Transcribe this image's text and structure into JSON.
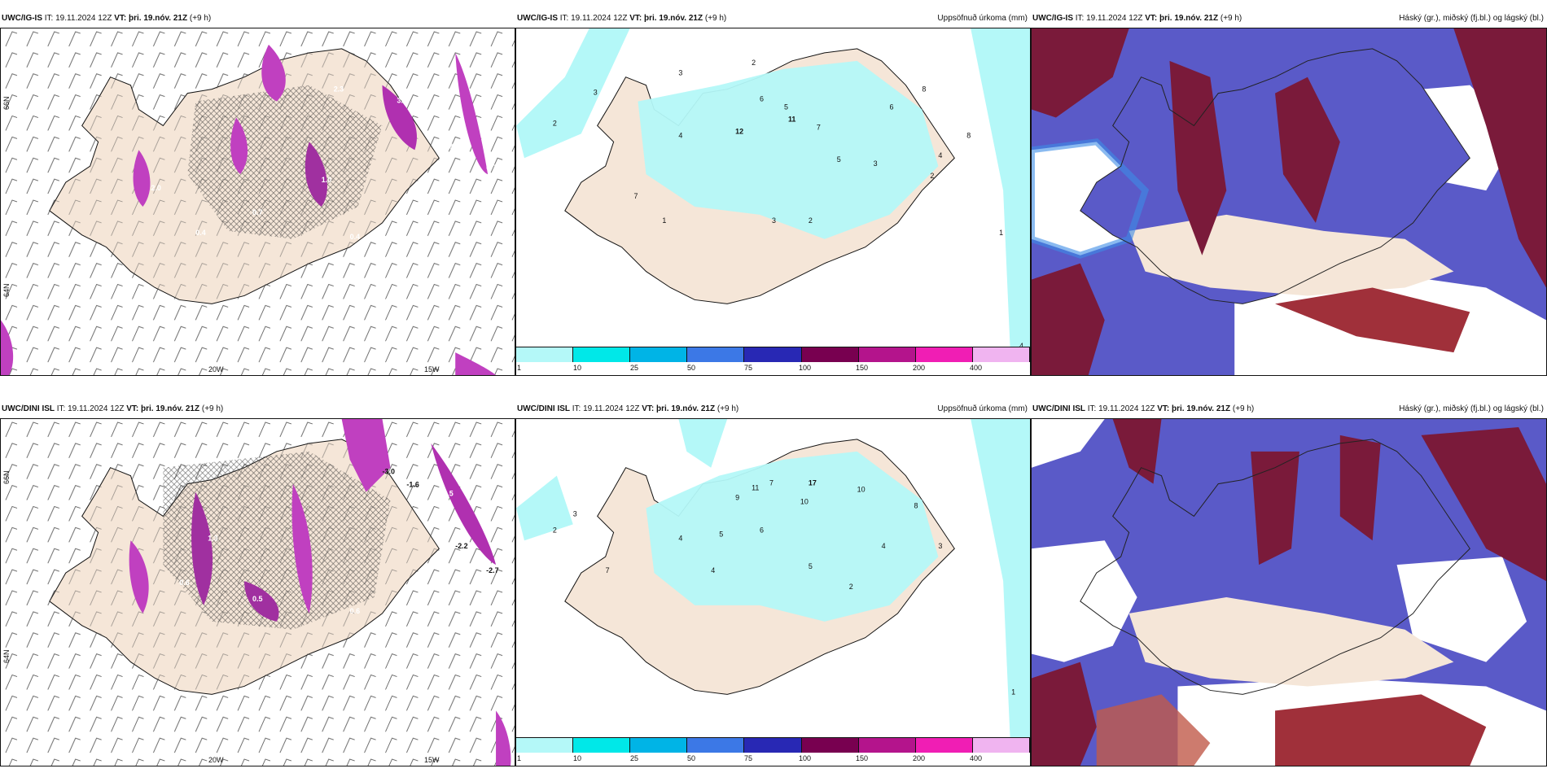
{
  "panels": [
    {
      "model_label": "UWC/IG-IS",
      "it_label": "IT:",
      "it_value": "19.11.2024 12Z",
      "vt_label": "VT:",
      "vt_value": "þri. 19.nóv. 21Z",
      "lead": "(+9 h)",
      "right_label": ""
    },
    {
      "model_label": "UWC/IG-IS",
      "it_label": "IT:",
      "it_value": "19.11.2024 12Z",
      "vt_label": "VT:",
      "vt_value": "þri. 19.nóv. 21Z",
      "lead": "(+9 h)",
      "right_label": "Uppsöfnuð úrkoma (mm)"
    },
    {
      "model_label": "UWC/IG-IS",
      "it_label": "IT:",
      "it_value": "19.11.2024 12Z",
      "vt_label": "VT:",
      "vt_value": "þri. 19.nóv. 21Z",
      "lead": "(+9 h)",
      "right_label": "Háský (gr.), miðský (fj.bl.) og lágský (bl.)"
    },
    {
      "model_label": "UWC/DINI ISL",
      "it_label": "IT:",
      "it_value": "19.11.2024 12Z",
      "vt_label": "VT:",
      "vt_value": "þri. 19.nóv. 21Z",
      "lead": "(+9 h)",
      "right_label": ""
    },
    {
      "model_label": "UWC/DINI ISL",
      "it_label": "IT:",
      "it_value": "19.11.2024 12Z",
      "vt_label": "VT:",
      "vt_value": "þri. 19.nóv. 21Z",
      "lead": "(+9 h)",
      "right_label": "Uppsöfnuð úrkoma (mm)"
    },
    {
      "model_label": "UWC/DINI ISL",
      "it_label": "IT:",
      "it_value": "19.11.2024 12Z",
      "vt_label": "VT:",
      "vt_value": "þri. 19.nóv. 21Z",
      "lead": "(+9 h)",
      "right_label": "Háský (gr.), miðský (fj.bl.) og lágský (bl.)"
    }
  ],
  "precip_colorbar": {
    "ticks": [
      "1",
      "10",
      "25",
      "50",
      "75",
      "100",
      "150",
      "200",
      "400"
    ],
    "colors": [
      "#b4f8f8",
      "#00e8e8",
      "#00b4e6",
      "#3c78e6",
      "#2828b4",
      "#780050",
      "#b4148c",
      "#f01eb4",
      "#f0b4f0"
    ]
  },
  "axis_labels": {
    "lon_20w": "20W",
    "lon_15w": "15W",
    "lat_66n": "66N",
    "lat_64n": "64N"
  },
  "colors": {
    "land": "#f5e6d8",
    "precip_light": "#b4f8f8",
    "wind_purple": "#c040c0",
    "high_cloud": "#7a1a3a",
    "mid_cloud": "#5a5ac8",
    "low_cloud": "#3c8ce6"
  },
  "precip_labels_top": [
    "3",
    "2",
    "1",
    "3",
    "2",
    "6",
    "5",
    "11",
    "12",
    "7",
    "4",
    "8",
    "5",
    "3",
    "2",
    "6",
    "4",
    "8",
    "7",
    "2",
    "3",
    "1",
    "4"
  ],
  "precip_labels_bottom": [
    "2",
    "9",
    "11",
    "7",
    "10",
    "17",
    "6",
    "5",
    "4",
    "10",
    "8",
    "3",
    "4",
    "2",
    "7",
    "1",
    "3",
    "5",
    "4"
  ],
  "wind_labels_top": [
    "3.2",
    "2.3",
    "2.0",
    "0.7",
    "1.0",
    "0.4",
    "2.31",
    "0.7",
    "0.4"
  ],
  "wind_labels_bottom": [
    "-3.0",
    "-1.6",
    "-2.2",
    "2.5",
    "-2.7",
    "0.6",
    "0.5",
    "1.3",
    "0.6"
  ]
}
